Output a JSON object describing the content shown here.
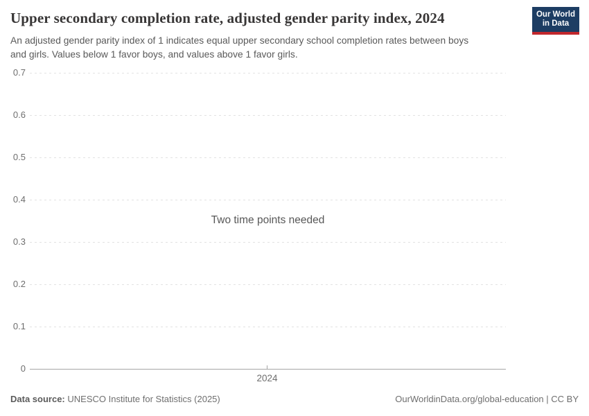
{
  "header": {
    "title": "Upper secondary completion rate, adjusted gender parity index, 2024",
    "subtitle": "An adjusted gender parity index of 1 indicates equal upper secondary school completion rates between boys\nand girls. Values below 1 favor boys, and values above 1 favor girls.",
    "logo": {
      "line1": "Our World",
      "line2": "in Data",
      "bg_color": "#1d3d63",
      "bar_color": "#c1272d"
    }
  },
  "chart_data": {
    "type": "line",
    "title": "Upper secondary completion rate, adjusted gender parity index, 2024",
    "xlabel": "",
    "ylabel": "",
    "ylim": [
      0,
      0.7
    ],
    "yticks": [
      0,
      0.1,
      0.2,
      0.3,
      0.4,
      0.5,
      0.6,
      0.7
    ],
    "xticks": [
      "2024"
    ],
    "series": [],
    "empty_message": "Two time points needed",
    "grid": true,
    "gridline_style": "dashed"
  },
  "footer": {
    "datasource_label": "Data source:",
    "datasource_value": "UNESCO Institute for Statistics (2025)",
    "credit": "OurWorldinData.org/global-education | CC BY"
  }
}
